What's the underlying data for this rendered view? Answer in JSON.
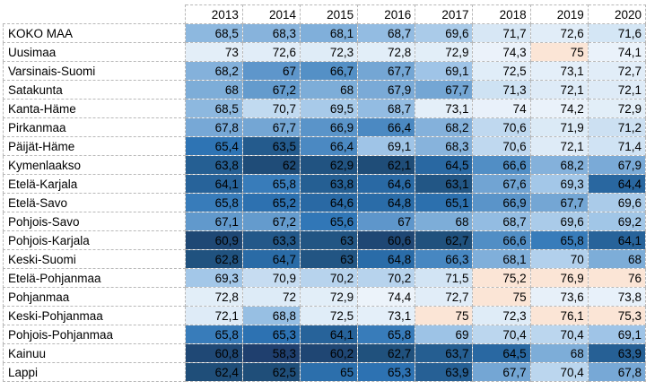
{
  "chart_data": {
    "type": "heatmap",
    "x": [
      "2013",
      "2014",
      "2015",
      "2016",
      "2017",
      "2018",
      "2019",
      "2020"
    ],
    "rows": [
      {
        "name": "KOKO MAA",
        "values": [
          "68,5",
          "68,3",
          "68,1",
          "68,7",
          "69,6",
          "71,7",
          "72,6",
          "71,6"
        ]
      },
      {
        "name": "Uusimaa",
        "values": [
          "73",
          "72,6",
          "72,3",
          "72,8",
          "72,9",
          "74,3",
          "75",
          "74,1"
        ]
      },
      {
        "name": "Varsinais-Suomi",
        "values": [
          "68,2",
          "67",
          "66,7",
          "67,7",
          "69,1",
          "72,5",
          "73,1",
          "72,7"
        ]
      },
      {
        "name": "Satakunta",
        "values": [
          "68",
          "67,2",
          "68",
          "67,9",
          "67,7",
          "71,3",
          "72,1",
          "72,1"
        ]
      },
      {
        "name": "Kanta-Häme",
        "values": [
          "68,5",
          "70,7",
          "69,5",
          "68,7",
          "73,1",
          "74",
          "74,2",
          "72,9"
        ]
      },
      {
        "name": "Pirkanmaa",
        "values": [
          "67,8",
          "67,7",
          "66,9",
          "66,4",
          "68,2",
          "70,6",
          "71,9",
          "71,2"
        ]
      },
      {
        "name": "Päijät-Häme",
        "values": [
          "65,4",
          "63,5",
          "66,4",
          "69,1",
          "68,3",
          "70,6",
          "72,1",
          "71,4"
        ]
      },
      {
        "name": "Kymenlaakso",
        "values": [
          "63,8",
          "62",
          "62,9",
          "62,1",
          "64,5",
          "66,6",
          "68,2",
          "67,9"
        ]
      },
      {
        "name": "Etelä-Karjala",
        "values": [
          "64,1",
          "65,8",
          "63,8",
          "64,6",
          "63,1",
          "67,6",
          "69,3",
          "64,4"
        ]
      },
      {
        "name": "Etelä-Savo",
        "values": [
          "65,8",
          "65,2",
          "64,6",
          "64,8",
          "65,1",
          "66,9",
          "67,7",
          "69,6"
        ]
      },
      {
        "name": "Pohjois-Savo",
        "values": [
          "67,1",
          "67,2",
          "65,6",
          "67",
          "68",
          "68,7",
          "69,6",
          "69,2"
        ]
      },
      {
        "name": "Pohjois-Karjala",
        "values": [
          "60,9",
          "63,3",
          "63",
          "60,6",
          "62,7",
          "66,6",
          "65,8",
          "64,1"
        ]
      },
      {
        "name": "Keski-Suomi",
        "values": [
          "62,8",
          "64,7",
          "63",
          "64,8",
          "66,3",
          "68,1",
          "70",
          "68"
        ]
      },
      {
        "name": "Etelä-Pohjanmaa",
        "values": [
          "69,3",
          "70,9",
          "70,2",
          "70,2",
          "71,5",
          "75,2",
          "76,9",
          "76"
        ]
      },
      {
        "name": "Pohjanmaa",
        "values": [
          "72,8",
          "72",
          "72,9",
          "74,4",
          "72,7",
          "75",
          "73,6",
          "73,8"
        ]
      },
      {
        "name": "Keski-Pohjanmaa",
        "values": [
          "72,1",
          "68,8",
          "72,5",
          "73,1",
          "75",
          "72,3",
          "76,1",
          "75,3"
        ]
      },
      {
        "name": "Pohjois-Pohjanmaa",
        "values": [
          "65,8",
          "65,3",
          "64,1",
          "65,8",
          "69",
          "70,4",
          "70,4",
          "69,1"
        ]
      },
      {
        "name": "Kainuu",
        "values": [
          "60,8",
          "58,3",
          "60,2",
          "62,7",
          "63,7",
          "64,5",
          "68",
          "63,9"
        ]
      },
      {
        "name": "Lappi",
        "values": [
          "62,4",
          "62,5",
          "65",
          "65,3",
          "63,9",
          "67,7",
          "70,4",
          "67,8"
        ]
      }
    ],
    "colors": {
      "low": "#1f4e79",
      "mid_dark": "#2e75b6",
      "mid": "#9dc3e6",
      "light": "#ddebf7",
      "high": "#fbe5d6"
    },
    "scale_note_values": [
      58.3,
      76.9
    ]
  }
}
